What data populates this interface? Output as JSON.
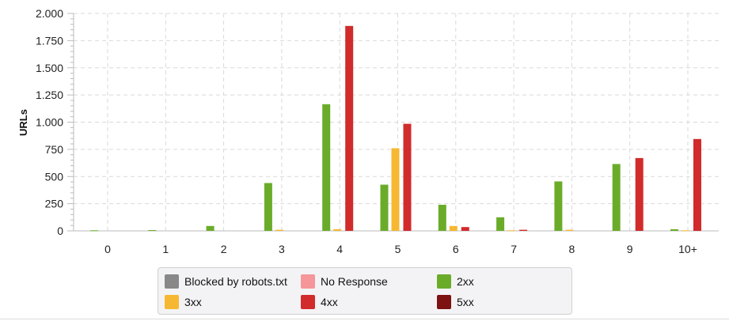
{
  "chart_data": {
    "type": "bar",
    "title": "",
    "xlabel": "",
    "ylabel": "URLs",
    "categories": [
      "0",
      "1",
      "2",
      "3",
      "4",
      "5",
      "6",
      "7",
      "8",
      "9",
      "10+"
    ],
    "ylim": [
      0,
      2000
    ],
    "yticks": [
      0,
      250,
      500,
      750,
      1000,
      1250,
      1500,
      1750,
      2000
    ],
    "ytick_labels": [
      "0",
      "250",
      "500",
      "750",
      "1.000",
      "1.250",
      "1.500",
      "1.750",
      "2.000"
    ],
    "grid": true,
    "legend_position": "bottom",
    "series": [
      {
        "name": "Blocked by robots.txt",
        "color": "#888888",
        "values": [
          0,
          0,
          0,
          0,
          0,
          0,
          0,
          0,
          0,
          0,
          0
        ]
      },
      {
        "name": "No Response",
        "color": "#f4969a",
        "values": [
          0,
          0,
          0,
          0,
          0,
          0,
          0,
          0,
          0,
          0,
          0
        ]
      },
      {
        "name": "2xx",
        "color": "#6aac2a",
        "values": [
          5,
          7,
          45,
          440,
          1165,
          425,
          240,
          125,
          455,
          615,
          15
        ]
      },
      {
        "name": "3xx",
        "color": "#f6b733",
        "values": [
          0,
          0,
          0,
          10,
          15,
          760,
          45,
          5,
          10,
          0,
          5
        ]
      },
      {
        "name": "4xx",
        "color": "#d12b2b",
        "values": [
          0,
          0,
          0,
          0,
          1885,
          985,
          35,
          10,
          0,
          670,
          845
        ]
      },
      {
        "name": "5xx",
        "color": "#7c1212",
        "values": [
          0,
          0,
          0,
          0,
          0,
          0,
          0,
          0,
          0,
          0,
          0
        ]
      }
    ]
  }
}
